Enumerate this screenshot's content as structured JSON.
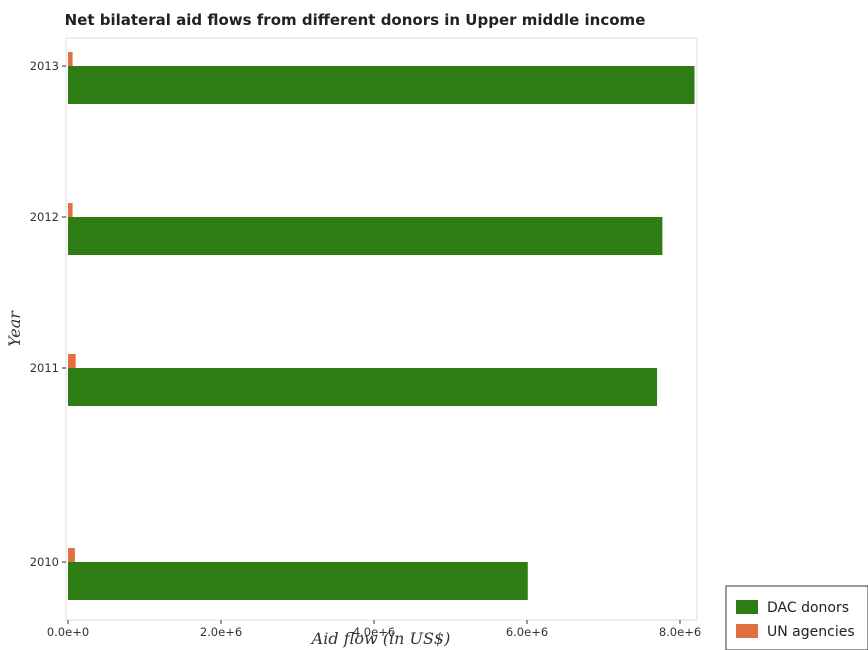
{
  "chart_data": {
    "type": "bar",
    "orientation": "horizontal",
    "title": "Net bilateral aid flows from different donors in Upper middle income",
    "xlabel": "Aid flow (in US$)",
    "ylabel": "Year",
    "categories": [
      "2010",
      "2011",
      "2012",
      "2013"
    ],
    "series": [
      {
        "name": "DAC donors",
        "color": "#2e7d14",
        "values": [
          6010000,
          7700000,
          7770000,
          8190000
        ]
      },
      {
        "name": "UN agencies",
        "color": "#e07040",
        "values": [
          90000,
          100000,
          60000,
          60000
        ]
      }
    ],
    "xlim": [
      0,
      8500000
    ],
    "xticks": [
      0,
      2000000,
      4000000,
      6000000,
      8000000
    ],
    "xtick_labels": [
      "0.0e+0",
      "2.0e+6",
      "4.0e+6",
      "6.0e+6",
      "8.0e+6"
    ],
    "grid": false,
    "legend_position": "bottom-right"
  }
}
